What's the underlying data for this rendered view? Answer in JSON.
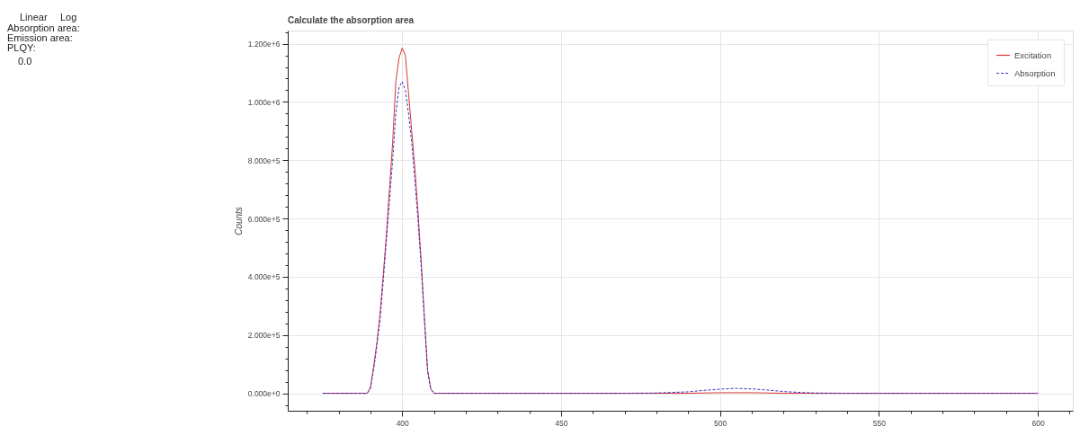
{
  "chart_data": {
    "type": "line",
    "title": "Calculate the absorption area",
    "ylabel": "Counts",
    "annotations": [
      "Linear",
      "Log",
      "Absorption area:",
      "Emission area:",
      "PLQY:",
      "0.0"
    ],
    "x": [
      375,
      380,
      385,
      389,
      390,
      391,
      392,
      393,
      394,
      395,
      396,
      397,
      398,
      399,
      400,
      401,
      402,
      403,
      404,
      405,
      406,
      407,
      408,
      409,
      410,
      420,
      430,
      440,
      450,
      460,
      470,
      480,
      485,
      490,
      495,
      500,
      505,
      510,
      515,
      520,
      525,
      530,
      540,
      550,
      560,
      570,
      580,
      590,
      600
    ],
    "series": [
      {
        "name": "Excitation",
        "color": "#dd3333",
        "line_style": "solid",
        "values": [
          0,
          0,
          0,
          0,
          20000,
          90000,
          170000,
          270000,
          400000,
          540000,
          700000,
          860000,
          1070000,
          1150000,
          1185000,
          1160000,
          1030000,
          900000,
          770000,
          620000,
          450000,
          260000,
          80000,
          15000,
          0,
          0,
          0,
          0,
          0,
          0,
          0,
          0,
          0,
          0,
          1000,
          2000,
          2000,
          2000,
          1000,
          0,
          0,
          0,
          0,
          0,
          0,
          0,
          0,
          0,
          0
        ]
      },
      {
        "name": "Absorption",
        "color": "#3333cc",
        "line_style": "dashed",
        "values": [
          0,
          0,
          0,
          0,
          15000,
          80000,
          160000,
          250000,
          380000,
          520000,
          660000,
          800000,
          960000,
          1050000,
          1070000,
          1040000,
          960000,
          860000,
          730000,
          590000,
          430000,
          250000,
          75000,
          15000,
          0,
          0,
          0,
          0,
          0,
          0,
          0,
          1000,
          3000,
          5000,
          10000,
          14000,
          17000,
          15000,
          11000,
          6000,
          3000,
          1000,
          0,
          0,
          0,
          0,
          0,
          0,
          0
        ]
      }
    ],
    "xlim": [
      364,
      611
    ],
    "xticks": [
      {
        "value": 370,
        "label": null
      },
      {
        "value": 380,
        "label": null
      },
      {
        "value": 390,
        "label": null
      },
      400,
      {
        "value": 410,
        "label": null
      },
      {
        "value": 420,
        "label": null
      },
      {
        "value": 430,
        "label": null
      },
      {
        "value": 440,
        "label": null
      },
      450,
      {
        "value": 460,
        "label": null
      },
      {
        "value": 470,
        "label": null
      },
      {
        "value": 480,
        "label": null
      },
      {
        "value": 490,
        "label": null
      },
      500,
      {
        "value": 510,
        "label": null
      },
      {
        "value": 520,
        "label": null
      },
      {
        "value": 530,
        "label": null
      },
      {
        "value": 540,
        "label": null
      },
      550,
      {
        "value": 560,
        "label": null
      },
      {
        "value": 570,
        "label": null
      },
      {
        "value": 580,
        "label": null
      },
      {
        "value": 590,
        "label": null
      },
      600,
      {
        "value": 610,
        "label": null
      }
    ],
    "ylim": [
      -60000,
      1245000
    ],
    "yticks": [
      {
        "value": -40000,
        "label": null
      },
      {
        "value": 0,
        "label": "0.000e+0"
      },
      {
        "value": 40000,
        "label": null
      },
      {
        "value": 80000,
        "label": null
      },
      {
        "value": 120000,
        "label": null
      },
      {
        "value": 160000,
        "label": null
      },
      {
        "value": 200000,
        "label": "2.000e+5"
      },
      {
        "value": 240000,
        "label": null
      },
      {
        "value": 280000,
        "label": null
      },
      {
        "value": 320000,
        "label": null
      },
      {
        "value": 360000,
        "label": null
      },
      {
        "value": 400000,
        "label": "4.000e+5"
      },
      {
        "value": 440000,
        "label": null
      },
      {
        "value": 480000,
        "label": null
      },
      {
        "value": 520000,
        "label": null
      },
      {
        "value": 560000,
        "label": null
      },
      {
        "value": 600000,
        "label": "6.000e+5"
      },
      {
        "value": 640000,
        "label": null
      },
      {
        "value": 680000,
        "label": null
      },
      {
        "value": 720000,
        "label": null
      },
      {
        "value": 760000,
        "label": null
      },
      {
        "value": 800000,
        "label": "8.000e+5"
      },
      {
        "value": 840000,
        "label": null
      },
      {
        "value": 880000,
        "label": null
      },
      {
        "value": 920000,
        "label": null
      },
      {
        "value": 960000,
        "label": null
      },
      {
        "value": 1000000,
        "label": "1.000e+6"
      },
      {
        "value": 1040000,
        "label": null
      },
      {
        "value": 1080000,
        "label": null
      },
      {
        "value": 1120000,
        "label": null
      },
      {
        "value": 1160000,
        "label": null
      },
      {
        "value": 1200000,
        "label": "1.200e+6"
      },
      {
        "value": 1240000,
        "label": null
      }
    ],
    "grid": true,
    "legend": "top right"
  }
}
